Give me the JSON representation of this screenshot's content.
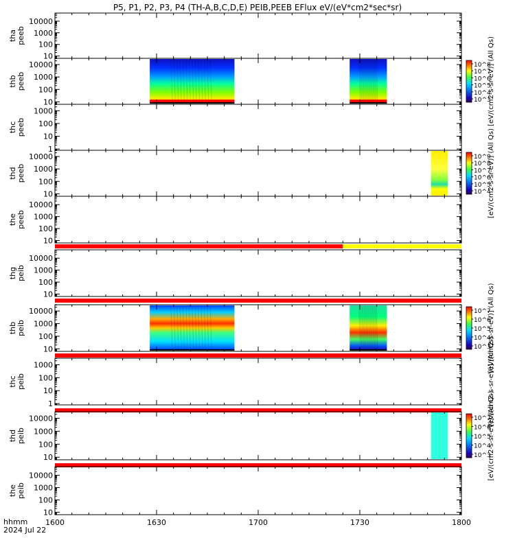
{
  "chart_data": {
    "type": "heatmap",
    "title": "P5, P1, P2, P3, P4 (TH-A,B,C,D,E) PEIB,PEEB EFlux eV/(eV*cm2*sec*sr)",
    "x_tick_labels": [
      "1600",
      "1630",
      "1700",
      "1730",
      "1800"
    ],
    "x_range_hhmm": [
      1600,
      1800
    ],
    "x_label_line1": "hhmm",
    "x_label_line2": "2024 Jul 22",
    "y_scale": "log",
    "panels": [
      {
        "id": "tha-peeb",
        "label1": "tha",
        "label2": "peeb",
        "yticks": [
          "10000",
          "1000",
          "100",
          "10"
        ],
        "ymin_exp": 0.8,
        "ymax_exp": 4.7,
        "blocks": []
      },
      {
        "id": "thb-peeb",
        "label1": "thb",
        "label2": "peeb",
        "yticks": [
          "10000",
          "1000",
          "100",
          "10"
        ],
        "ymin_exp": 0.8,
        "ymax_exp": 4.5,
        "blocks": [
          {
            "start_hhmm": 1628,
            "end_hhmm": 1653,
            "style": "electron"
          },
          {
            "start_hhmm": 1727,
            "end_hhmm": 1738,
            "style": "electron"
          }
        ],
        "colorbar": {
          "ticks": [
            "10^8",
            "10^7",
            "10^6",
            "10^5",
            "10^4",
            "10^3"
          ],
          "label": "[eV/(cm2-s-sr-eV)] (All Qs)"
        }
      },
      {
        "id": "thc-peeb",
        "label1": "thc",
        "label2": "peeb",
        "yticks": [
          "1000",
          "100",
          "10",
          "1"
        ],
        "ymin_exp": -0.1,
        "ymax_exp": 3.5,
        "blocks": []
      },
      {
        "id": "thd-peeb",
        "label1": "thd",
        "label2": "peeb",
        "yticks": [
          "10000",
          "1000",
          "100",
          "10"
        ],
        "ymin_exp": 0.8,
        "ymax_exp": 4.5,
        "blocks": [
          {
            "start_hhmm": 1751,
            "end_hhmm": 1756,
            "style": "green-yellow"
          }
        ],
        "colorbar": {
          "ticks": [
            "10^9",
            "10^8",
            "10^7",
            "10^6",
            "10^5",
            "10^4"
          ],
          "label": "[eV/(cm2-s-sr-eV)] (All Qs)"
        }
      },
      {
        "id": "the-peeb",
        "label1": "the",
        "label2": "peeb",
        "yticks": [
          "10000",
          "1000",
          "100",
          "10"
        ],
        "ymin_exp": 0.8,
        "ymax_exp": 4.7,
        "blocks": [],
        "bar": [
          {
            "start_hhmm": 1600,
            "end_hhmm": 1725,
            "color": "#ff0000"
          },
          {
            "start_hhmm": 1725,
            "end_hhmm": 1800,
            "color": "#ffff00"
          }
        ]
      },
      {
        "id": "thg-peib",
        "label1": "thg",
        "label2": "peib",
        "yticks": [
          "10000",
          "1000",
          "100",
          "10"
        ],
        "ymin_exp": 0.8,
        "ymax_exp": 4.7,
        "blocks": [],
        "bar": [
          {
            "start_hhmm": 1600,
            "end_hhmm": 1800,
            "color": "#ff0000"
          }
        ]
      },
      {
        "id": "thb-peib",
        "label1": "thb",
        "label2": "peib",
        "yticks": [
          "10000",
          "1000",
          "100",
          "10"
        ],
        "ymin_exp": 0.8,
        "ymax_exp": 4.5,
        "blocks": [
          {
            "start_hhmm": 1628,
            "end_hhmm": 1653,
            "style": "ion"
          },
          {
            "start_hhmm": 1727,
            "end_hhmm": 1738,
            "style": "ion2"
          }
        ],
        "colorbar": {
          "ticks": [
            "10^7",
            "10^6",
            "10^5",
            "10^4",
            "10^3"
          ],
          "label": "[eV/(cm2-s-sr-eV)] (All Qs)"
        },
        "bar": [
          {
            "start_hhmm": 1600,
            "end_hhmm": 1800,
            "color": "#ff0000"
          }
        ]
      },
      {
        "id": "thc-peib",
        "label1": "thc",
        "label2": "peib",
        "yticks": [
          "1000",
          "100",
          "10",
          "1"
        ],
        "ymin_exp": -0.1,
        "ymax_exp": 3.5,
        "blocks": [],
        "colorbar_label_only": "[eV/(cm2-s-sr-eV)] (All Qs)",
        "bar": [
          {
            "start_hhmm": 1600,
            "end_hhmm": 1800,
            "color": "#ff0000"
          }
        ]
      },
      {
        "id": "thd-peib",
        "label1": "thd",
        "label2": "peib",
        "yticks": [
          "10000",
          "1000",
          "100",
          "10"
        ],
        "ymin_exp": 0.8,
        "ymax_exp": 4.5,
        "blocks": [
          {
            "start_hhmm": 1751,
            "end_hhmm": 1756,
            "style": "cyan"
          }
        ],
        "colorbar": {
          "ticks": [
            "10^7",
            "10^6",
            "10^5",
            "10^4",
            "10^3"
          ],
          "label": "[eV/(cm2-s-sr-eV)] (All Qs)"
        },
        "bar": [
          {
            "start_hhmm": 1600,
            "end_hhmm": 1800,
            "color": "#ff0000"
          }
        ]
      },
      {
        "id": "the-peib",
        "label1": "the",
        "label2": "peib",
        "yticks": [
          "10000",
          "1000",
          "100",
          "10"
        ],
        "ymin_exp": 0.8,
        "ymax_exp": 4.7,
        "blocks": []
      }
    ]
  }
}
